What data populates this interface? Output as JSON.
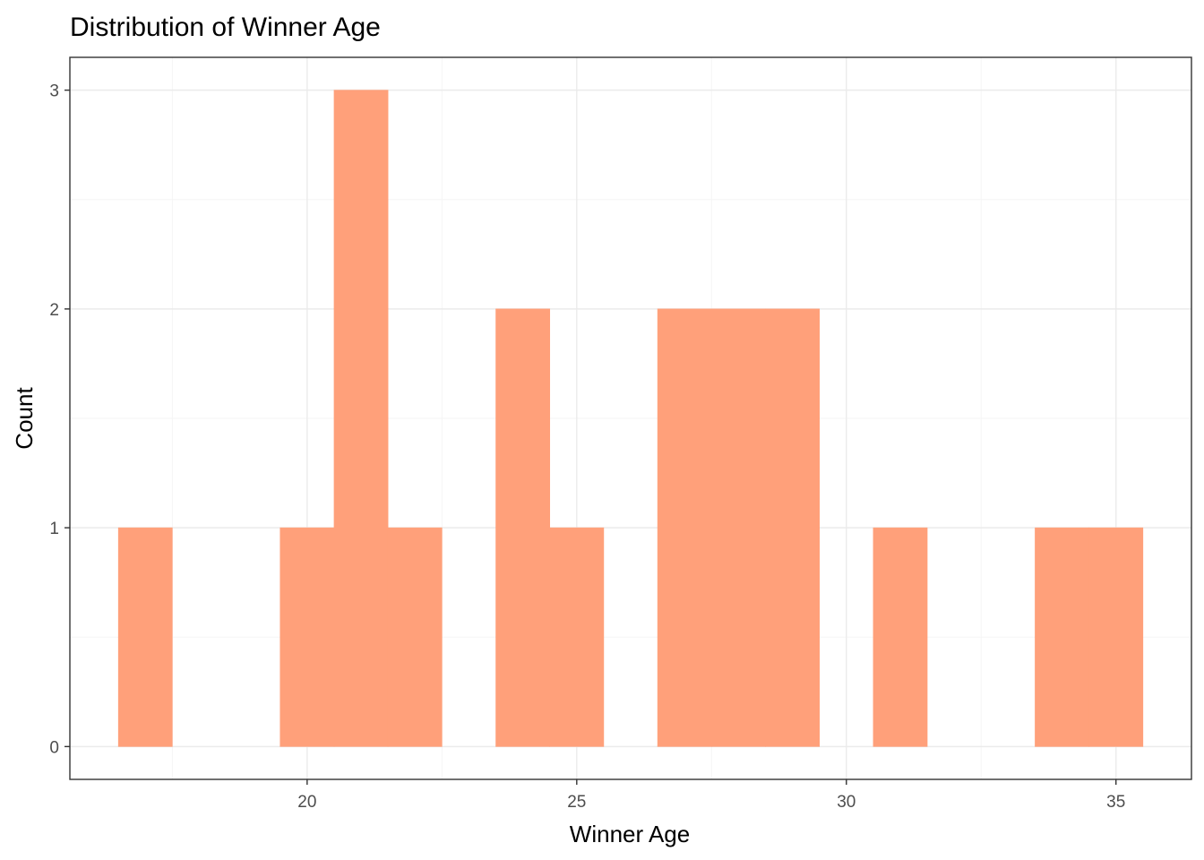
{
  "chart_data": {
    "type": "bar",
    "title": "Distribution of  Winner Age",
    "xlabel": "Winner Age",
    "ylabel": "Count",
    "bin_width": 1,
    "bins": [
      {
        "x": 17,
        "count": 1
      },
      {
        "x": 18,
        "count": 0
      },
      {
        "x": 19,
        "count": 0
      },
      {
        "x": 20,
        "count": 1
      },
      {
        "x": 21,
        "count": 3
      },
      {
        "x": 22,
        "count": 1
      },
      {
        "x": 23,
        "count": 0
      },
      {
        "x": 24,
        "count": 2
      },
      {
        "x": 25,
        "count": 1
      },
      {
        "x": 26,
        "count": 0
      },
      {
        "x": 27,
        "count": 2
      },
      {
        "x": 28,
        "count": 2
      },
      {
        "x": 29,
        "count": 2
      },
      {
        "x": 30,
        "count": 0
      },
      {
        "x": 31,
        "count": 1
      },
      {
        "x": 32,
        "count": 0
      },
      {
        "x": 33,
        "count": 0
      },
      {
        "x": 34,
        "count": 1
      },
      {
        "x": 35,
        "count": 1
      }
    ],
    "xlim": [
      15.6,
      36.4
    ],
    "ylim": [
      -0.15,
      3.15
    ],
    "x_ticks": [
      20,
      25,
      30,
      35
    ],
    "x_tick_labels": [
      "20",
      "25",
      "30",
      "35"
    ],
    "y_ticks": [
      0,
      1,
      2,
      3
    ],
    "y_tick_labels": [
      "0",
      "1",
      "2",
      "3"
    ],
    "grid": true,
    "legend": "none",
    "colors": {
      "bar": "#FFA07A",
      "panel_border": "#333333",
      "grid_major": "#EBEBEB",
      "grid_minor": "#F5F5F5",
      "tick_text": "#4D4D4D"
    }
  }
}
